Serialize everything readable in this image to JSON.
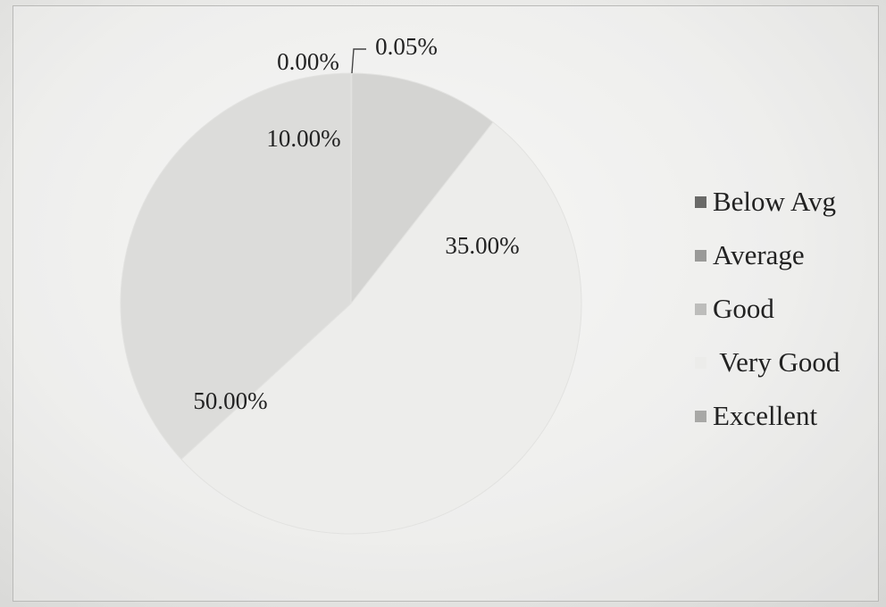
{
  "chart_data": {
    "type": "pie",
    "labels": [
      "Below Avg",
      "Average",
      "Good",
      "Very Good",
      "Excellent"
    ],
    "values": [
      0.05,
      0.0,
      10.0,
      50.0,
      35.0
    ],
    "value_labels": [
      "0.05%",
      "0.00%",
      "10.00%",
      "50.00%",
      "35.00%"
    ],
    "colors": [
      "#6a6a68",
      "#9a9a98",
      "#d4d4d2",
      "#ededeb",
      "#dcdcda"
    ],
    "legend_position": "right",
    "title": "",
    "legend": [
      {
        "label": "Below Avg",
        "color": "#6a6a68"
      },
      {
        "label": "Average",
        "color": "#9a9a98"
      },
      {
        "label": "Good",
        "color": "#bdbdbb"
      },
      {
        "label": " Very Good",
        "color": "#ececea"
      },
      {
        "label": "Excellent",
        "color": "#a8a8a6"
      }
    ]
  }
}
